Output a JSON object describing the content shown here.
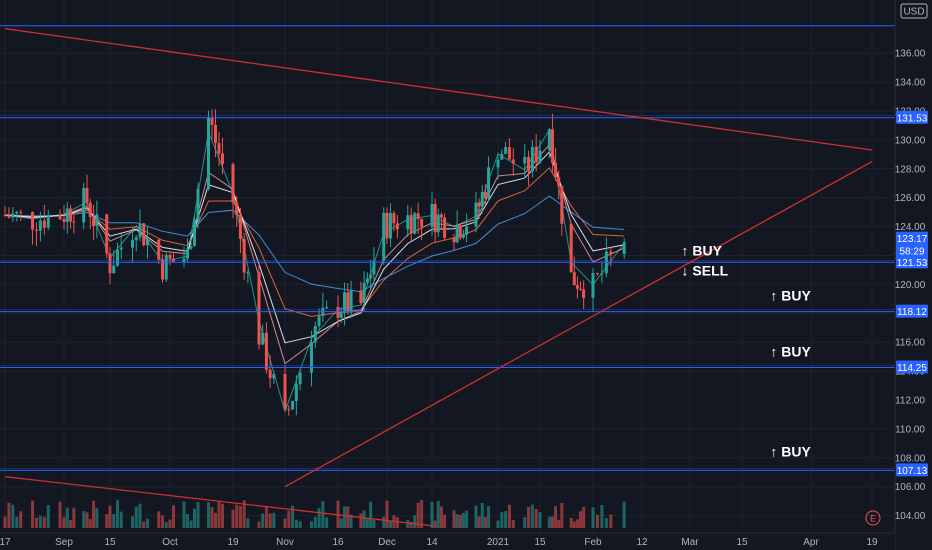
{
  "chart_data": {
    "type": "candlestick",
    "currency": "USD",
    "y_axis_ticks": [
      104,
      106,
      108,
      110,
      112,
      114,
      116,
      118,
      120,
      122,
      124,
      126,
      128,
      130,
      132,
      134,
      136
    ],
    "ylim": [
      103,
      138
    ],
    "x_axis_labels": [
      "17",
      "Sep",
      "15",
      "Oct",
      "19",
      "Nov",
      "16",
      "Dec",
      "14",
      "2021",
      "15",
      "Feb",
      "12",
      "Mar",
      "15",
      "Apr",
      "19"
    ],
    "x_axis_label_dates": [
      "2020-08-17",
      "2020-09-01",
      "2020-09-15",
      "2020-10-01",
      "2020-10-19",
      "2020-11-02",
      "2020-11-16",
      "2020-12-01",
      "2020-12-14",
      "2021-01-04",
      "2021-01-15",
      "2021-02-01",
      "2021-02-12",
      "2021-03-01",
      "2021-03-15",
      "2021-04-01",
      "2021-04-19"
    ],
    "price_levels": [
      {
        "label": "131.53",
        "value": 131.53
      },
      {
        "label": "121.53",
        "value": 121.53
      },
      {
        "label": "118.12",
        "value": 118.12
      },
      {
        "label": "114.25",
        "value": 114.25
      },
      {
        "label": "107.13",
        "value": 107.13
      }
    ],
    "top_level": 137.9,
    "price_badges": [
      {
        "label": "123.17",
        "value": 123.17,
        "color": "#2962ff"
      },
      {
        "label": "58:29",
        "value": 122.3,
        "color": "#2962ff"
      },
      {
        "label": "121.53",
        "value": 121.53,
        "color": "#2962ff"
      }
    ],
    "trendlines": [
      {
        "name": "resistance",
        "color": "#d32f2f",
        "points": [
          [
            "2020-08-17",
            137.7
          ],
          [
            "2021-04-19",
            129.3
          ]
        ]
      },
      {
        "name": "support",
        "color": "#d32f2f",
        "points": [
          [
            "2020-11-02",
            106.0
          ],
          [
            "2021-04-19",
            128.5
          ]
        ]
      },
      {
        "name": "volume-trend",
        "color": "#d32f2f",
        "points": [
          [
            "2020-08-17",
            106.7
          ],
          [
            "2020-12-14",
            103.3
          ]
        ]
      }
    ],
    "annotations": [
      {
        "arrow": "↑",
        "text": "BUY",
        "date": "2021-02-26",
        "price": 122.0
      },
      {
        "arrow": "↓",
        "text": "SELL",
        "date": "2021-02-26",
        "price": 120.6
      },
      {
        "arrow": "↑",
        "text": "BUY",
        "date": "2021-03-22",
        "price": 118.9
      },
      {
        "arrow": "↑",
        "text": "BUY",
        "date": "2021-03-22",
        "price": 115.0
      },
      {
        "arrow": "↑",
        "text": "BUY",
        "date": "2021-03-22",
        "price": 108.1
      }
    ],
    "closes": [
      {
        "date": "2020-08-17",
        "close": 124.8
      },
      {
        "date": "2020-08-24",
        "close": 124.5
      },
      {
        "date": "2020-09-01",
        "close": 124.9
      },
      {
        "date": "2020-09-08",
        "close": 125.8
      },
      {
        "date": "2020-09-15",
        "close": 121.4
      },
      {
        "date": "2020-09-22",
        "close": 124.3
      },
      {
        "date": "2020-09-29",
        "close": 121.3
      },
      {
        "date": "2020-10-06",
        "close": 122.0
      },
      {
        "date": "2020-10-12",
        "close": 131.5
      },
      {
        "date": "2020-10-19",
        "close": 125.8
      },
      {
        "date": "2020-10-26",
        "close": 116.5
      },
      {
        "date": "2020-11-02",
        "close": 110.5
      },
      {
        "date": "2020-11-09",
        "close": 116.8
      },
      {
        "date": "2020-11-16",
        "close": 118.5
      },
      {
        "date": "2020-11-23",
        "close": 118.6
      },
      {
        "date": "2020-11-30",
        "close": 124.1
      },
      {
        "date": "2020-12-07",
        "close": 124.6
      },
      {
        "date": "2020-12-14",
        "close": 124.8
      },
      {
        "date": "2020-12-21",
        "close": 123.9
      },
      {
        "date": "2020-12-28",
        "close": 124.8
      },
      {
        "date": "2021-01-04",
        "close": 129.5
      },
      {
        "date": "2021-01-11",
        "close": 127.8
      },
      {
        "date": "2021-01-18",
        "close": 131.0
      },
      {
        "date": "2021-01-25",
        "close": 120.5
      },
      {
        "date": "2021-02-01",
        "close": 119.8
      },
      {
        "date": "2021-02-08",
        "close": 123.17
      }
    ],
    "moving_averages": [
      {
        "color": "#26a69a"
      },
      {
        "color": "#ef9a9a"
      },
      {
        "color": "#ff7043"
      },
      {
        "color": "#42a5f5"
      },
      {
        "color": "#ffffff"
      }
    ],
    "grid": true
  }
}
